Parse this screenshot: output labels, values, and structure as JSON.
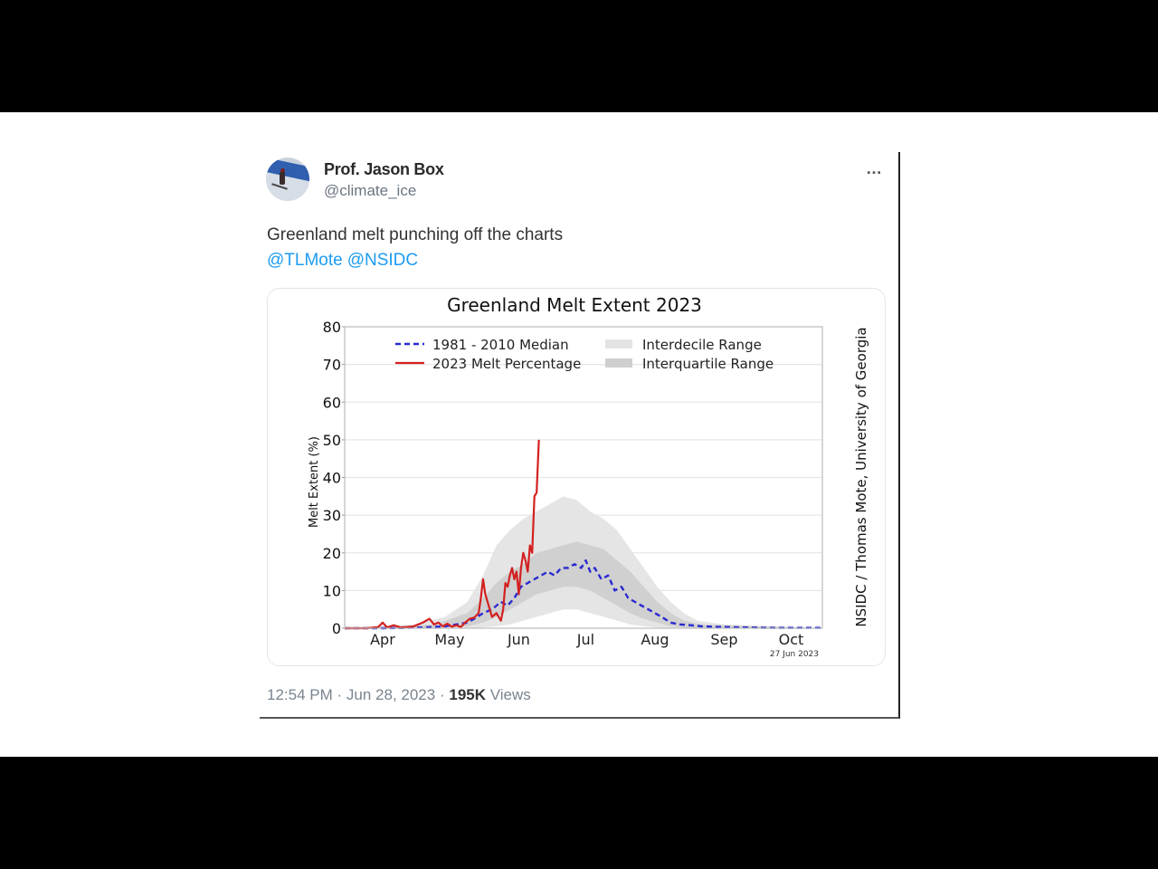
{
  "tweet": {
    "author_name": "Prof. Jason Box",
    "author_handle": "@climate_ice",
    "more_icon": "…",
    "text": "Greenland melt punching off the charts",
    "mentions": [
      "@TLMote",
      "@NSIDC"
    ],
    "time": "12:54 PM",
    "date": "Jun 28, 2023",
    "separator": "·",
    "views_count": "195K",
    "views_label": "Views"
  },
  "chart_data": {
    "type": "line",
    "title": "Greenland Melt Extent 2023",
    "xlabel": "",
    "ylabel": "Melt Extent (%)",
    "ylim": [
      0,
      80
    ],
    "yticks": [
      0,
      10,
      20,
      30,
      40,
      50,
      60,
      70,
      80
    ],
    "xticks": [
      "Apr",
      "May",
      "Jun",
      "Jul",
      "Aug",
      "Sep",
      "Oct"
    ],
    "grid": true,
    "legend_position": "upper center",
    "legend": [
      "1981 - 2010 Median",
      "2023 Melt Percentage",
      "Interdecile Range",
      "Interquartile Range"
    ],
    "date_stamp": "27 Jun 2023",
    "credit": "NSIDC / Thomas Mote, University of Georgia",
    "x_axis_note": "x = days since Mar 15",
    "colors": {
      "median": "#2a2ad0",
      "melt_2023": "#d42020",
      "interdecile": "#e4e4e4",
      "interquartile": "#cfcfcf"
    },
    "series": [
      {
        "name": "2023 Melt Percentage",
        "x": [
          0,
          10,
          15,
          17,
          19,
          22,
          25,
          28,
          31,
          35,
          38,
          40,
          42,
          44,
          46,
          48,
          50,
          52,
          54,
          56,
          58,
          60,
          61,
          62,
          63,
          64,
          65,
          66,
          68,
          70,
          71,
          72,
          73,
          74,
          75,
          76,
          77,
          78,
          79,
          80,
          81,
          82,
          83,
          84,
          85,
          86,
          87
        ],
        "values": [
          0,
          0,
          0.3,
          1.5,
          0.2,
          0.8,
          0.2,
          0.3,
          0.5,
          1.5,
          2.5,
          1,
          1.5,
          0.5,
          1.2,
          0.4,
          0.8,
          0.3,
          1.5,
          2.5,
          2.8,
          4,
          8,
          13,
          9,
          7,
          5,
          3,
          4,
          2,
          5,
          12,
          11,
          14,
          16,
          13,
          15,
          9,
          16,
          20,
          18,
          15,
          22,
          20,
          35,
          36,
          50
        ]
      },
      {
        "name": "1981 - 2010 Median",
        "x": [
          0,
          20,
          35,
          45,
          50,
          55,
          58,
          62,
          66,
          70,
          73,
          76,
          79,
          82,
          85,
          88,
          91,
          94,
          97,
          100,
          103,
          106,
          108,
          110,
          112,
          115,
          118,
          121,
          124,
          127,
          130,
          133,
          136,
          139,
          142,
          146,
          150,
          155,
          160,
          170,
          180,
          190,
          200,
          214
        ],
        "values": [
          0,
          0,
          0.2,
          0.5,
          1,
          1.5,
          2.5,
          4,
          5,
          7,
          6,
          8,
          11,
          12,
          13,
          14,
          15,
          14,
          16,
          16,
          17,
          16,
          18,
          15,
          16,
          13,
          14,
          10,
          11,
          8,
          7,
          6,
          5,
          4,
          3,
          1.5,
          1,
          0.8,
          0.5,
          0.3,
          0.2,
          0.1,
          0.1,
          0.1
        ]
      },
      {
        "name": "Interdecile Range",
        "x": [
          0,
          30,
          45,
          55,
          62,
          68,
          74,
          80,
          86,
          92,
          98,
          104,
          110,
          116,
          122,
          128,
          134,
          140,
          146,
          152,
          158,
          170,
          214
        ],
        "low": [
          0,
          0,
          0,
          0,
          0.2,
          0.5,
          1,
          2,
          3,
          4,
          5,
          5,
          4,
          3,
          2,
          1,
          0.5,
          0.2,
          0,
          0,
          0,
          0,
          0
        ],
        "high": [
          0,
          1,
          3,
          7,
          14,
          22,
          26,
          29,
          31,
          33,
          35,
          34,
          31,
          29,
          26,
          21,
          16,
          11,
          7,
          4,
          2,
          1,
          0
        ]
      },
      {
        "name": "Interquartile Range",
        "x": [
          0,
          40,
          55,
          62,
          68,
          74,
          80,
          86,
          92,
          98,
          104,
          110,
          116,
          122,
          128,
          134,
          140,
          146,
          152,
          160,
          214
        ],
        "low": [
          0,
          0,
          0.5,
          1.5,
          3,
          5,
          7,
          9,
          10,
          11,
          11,
          10,
          8,
          6,
          4,
          2.5,
          1.5,
          0.5,
          0.2,
          0,
          0
        ],
        "high": [
          0,
          1,
          4,
          8,
          12,
          15,
          17,
          20,
          21,
          22,
          23,
          22,
          21,
          18,
          15,
          11,
          7,
          4,
          2,
          1,
          0
        ]
      }
    ]
  }
}
